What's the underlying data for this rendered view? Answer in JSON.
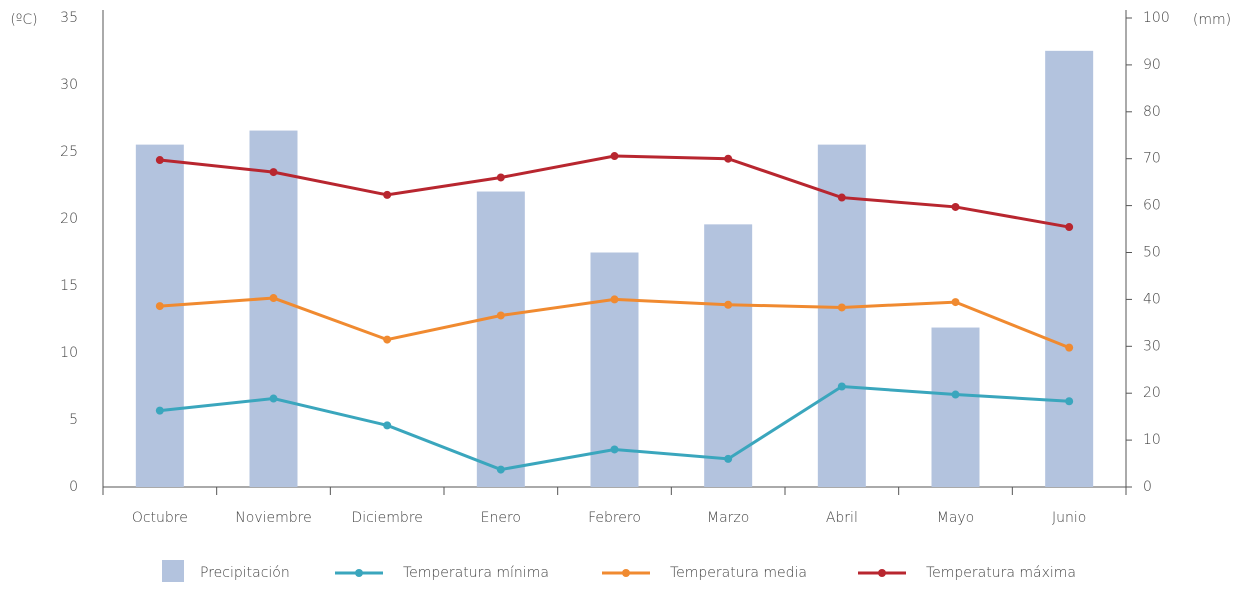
{
  "chart_data": {
    "type": "combo",
    "y_label": "(ºC)",
    "y2_label": "(mm)",
    "categories": [
      "Octubre",
      "Noviembre",
      "Diciembre",
      "Enero",
      "Febrero",
      "Marzo",
      "Abril",
      "Mayo",
      "Junio"
    ],
    "series": [
      {
        "name": "Precipitación",
        "type": "bar",
        "axis": "y2",
        "color": "#b3c3de",
        "values": [
          73,
          76,
          null,
          63,
          50,
          56,
          73,
          34,
          93
        ]
      },
      {
        "name": "Temperatura mínima",
        "type": "line",
        "color": "#3aa6bd",
        "values": [
          5.7,
          6.6,
          4.6,
          1.3,
          2.8,
          2.1,
          7.5,
          6.9,
          6.4
        ]
      },
      {
        "name": "Temperatura media",
        "type": "line",
        "color": "#f08a30",
        "values": [
          13.5,
          14.1,
          11.0,
          12.8,
          14.0,
          13.6,
          13.4,
          13.8,
          10.4
        ]
      },
      {
        "name": "Temperatura máxima",
        "type": "line",
        "color": "#b8262f",
        "values": [
          24.4,
          23.5,
          21.8,
          23.1,
          24.7,
          24.5,
          21.6,
          20.9,
          19.4
        ]
      }
    ],
    "ylim": [
      0,
      35
    ],
    "yticks": [
      0,
      5,
      10,
      15,
      20,
      25,
      30,
      35
    ],
    "y2lim": [
      0,
      100
    ],
    "y2ticks": [
      0,
      10,
      20,
      30,
      40,
      50,
      60,
      70,
      80,
      90,
      100
    ],
    "grid": false,
    "legend": "bottom"
  }
}
